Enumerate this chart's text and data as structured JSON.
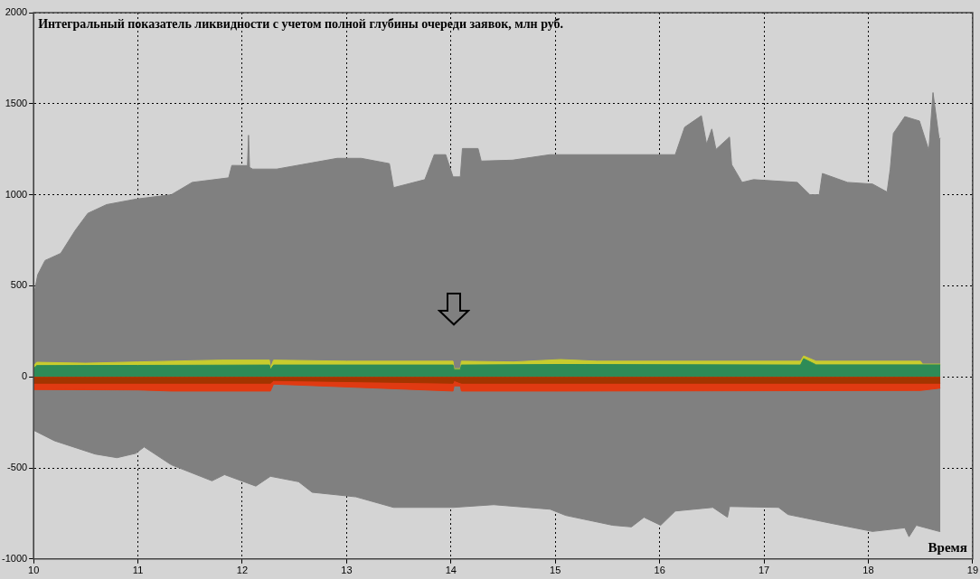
{
  "chart_data": {
    "type": "area",
    "title": "Интегральный показатель ликвидности с учетом полной глубины очереди заявок, млн руб.",
    "xlabel": "Время",
    "xlim": [
      10,
      19
    ],
    "xticks": [
      10,
      11,
      12,
      13,
      14,
      15,
      16,
      17,
      18,
      19
    ],
    "ylim": [
      -1000,
      2000
    ],
    "yticks": [
      -1000,
      -500,
      0,
      500,
      1000,
      1500,
      2000
    ],
    "grid": true,
    "series": [
      {
        "color": "#808080",
        "x": [
          10.0,
          10.04,
          10.11,
          10.26,
          10.4,
          10.52,
          10.7,
          10.98,
          11.32,
          11.52,
          11.87,
          11.9,
          12.05,
          12.06,
          12.07,
          12.1,
          12.33,
          12.91,
          13.14,
          13.41,
          13.45,
          13.75,
          13.84,
          13.95,
          14.02,
          14.09,
          14.11,
          14.26,
          14.29,
          14.59,
          14.95,
          16.15,
          16.24,
          16.4,
          16.45,
          16.5,
          16.54,
          16.67,
          16.69,
          16.79,
          16.9,
          17.32,
          17.44,
          17.53,
          17.56,
          17.8,
          18.04,
          18.18,
          18.21,
          18.24,
          18.35,
          18.49,
          18.58,
          18.62,
          18.68,
          18.69
        ],
        "values": [
          444,
          561,
          639,
          678,
          805,
          898,
          946,
          976,
          1000,
          1068,
          1093,
          1161,
          1160,
          1327,
          1150,
          1141,
          1141,
          1200,
          1200,
          1171,
          1039,
          1083,
          1220,
          1220,
          1098,
          1098,
          1254,
          1254,
          1185,
          1190,
          1220,
          1220,
          1371,
          1434,
          1278,
          1361,
          1249,
          1317,
          1166,
          1068,
          1083,
          1068,
          1000,
          1000,
          1117,
          1068,
          1059,
          1015,
          1141,
          1337,
          1429,
          1405,
          1244,
          1561,
          1302,
          1312
        ]
      },
      {
        "color": "#808080",
        "x": [
          10.0,
          10.2,
          10.59,
          10.8,
          10.98,
          11.06,
          11.32,
          11.71,
          11.83,
          12.13,
          12.27,
          12.54,
          12.67,
          13.09,
          13.45,
          14.02,
          14.41,
          14.95,
          15.1,
          15.55,
          15.73,
          15.85,
          16.01,
          16.15,
          16.51,
          16.65,
          16.67,
          17.14,
          17.23,
          17.65,
          18.04,
          18.35,
          18.39,
          18.46,
          18.68,
          18.69
        ],
        "values": [
          -293,
          -351,
          -424,
          -444,
          -420,
          -385,
          -483,
          -571,
          -537,
          -600,
          -546,
          -576,
          -634,
          -659,
          -717,
          -717,
          -702,
          -727,
          -761,
          -815,
          -824,
          -771,
          -815,
          -737,
          -717,
          -771,
          -712,
          -717,
          -756,
          -805,
          -849,
          -829,
          -878,
          -815,
          -849,
          -849
        ]
      },
      {
        "color": "#c8cc2e",
        "x": [
          10.0,
          10.03,
          10.5,
          11.0,
          11.8,
          12.26,
          12.27,
          12.3,
          13.0,
          14.02,
          14.03,
          14.09,
          14.1,
          14.6,
          15.05,
          15.4,
          17.35,
          17.38,
          17.5,
          18.5,
          18.52,
          18.69
        ],
        "values": [
          60,
          80,
          75,
          82,
          92,
          92,
          50,
          92,
          86,
          86,
          45,
          45,
          86,
          82,
          95,
          86,
          86,
          115,
          86,
          86,
          70,
          70
        ]
      },
      {
        "color": "#2e8b57",
        "x": [
          10.0,
          10.03,
          11.0,
          12.26,
          12.27,
          12.3,
          14.02,
          14.03,
          14.09,
          14.1,
          15.05,
          17.35,
          17.38,
          17.5,
          18.69
        ],
        "values": [
          45,
          62,
          63,
          65,
          40,
          65,
          65,
          40,
          40,
          65,
          68,
          65,
          100,
          66,
          66
        ]
      },
      {
        "color": "#e03a12",
        "x": [
          10.0,
          11.0,
          11.32,
          12.27,
          12.3,
          14.02,
          14.03,
          14.09,
          14.1,
          15.0,
          18.5,
          18.69
        ],
        "values": [
          -70,
          -72,
          -78,
          -78,
          -40,
          -78,
          -50,
          -50,
          -78,
          -78,
          -75,
          -62
        ]
      },
      {
        "color": "#a33500",
        "x": [
          10.0,
          12.27,
          12.3,
          14.02,
          14.03,
          14.1,
          18.69
        ],
        "values": [
          -35,
          -35,
          -20,
          -35,
          -20,
          -35,
          -35
        ]
      }
    ]
  }
}
